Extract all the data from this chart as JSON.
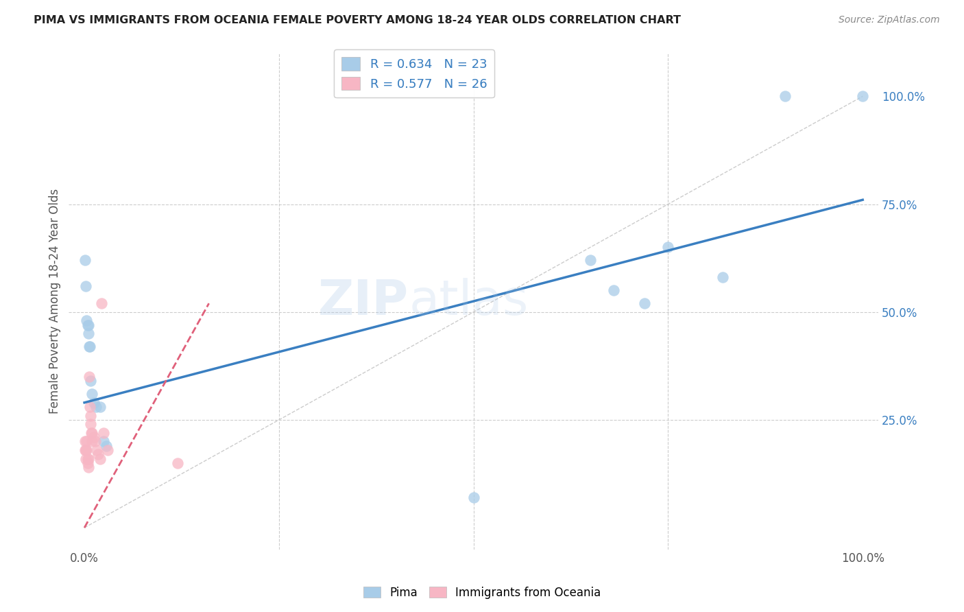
{
  "title": "PIMA VS IMMIGRANTS FROM OCEANIA FEMALE POVERTY AMONG 18-24 YEAR OLDS CORRELATION CHART",
  "source": "Source: ZipAtlas.com",
  "ylabel": "Female Poverty Among 18-24 Year Olds",
  "watermark": "ZIPatlas",
  "pima_color": "#a8cce8",
  "oceania_color": "#f7b6c4",
  "reg_blue": "#3a7fc1",
  "reg_pink": "#e0607a",
  "legend_entries": [
    {
      "label": "R = 0.634   N = 23",
      "color": "#a8cce8"
    },
    {
      "label": "R = 0.577   N = 26",
      "color": "#f7b6c4"
    }
  ],
  "bottom_legend": [
    {
      "label": "Pima",
      "color": "#a8cce8"
    },
    {
      "label": "Immigrants from Oceania",
      "color": "#f7b6c4"
    }
  ],
  "xmin": 0.0,
  "xmax": 1.0,
  "ymin": 0.0,
  "ymax": 1.0,
  "grid_vals": [
    0.25,
    0.5,
    0.75
  ],
  "xtick_labels": [
    "0.0%",
    "100.0%"
  ],
  "xtick_vals": [
    0.0,
    1.0
  ],
  "ytick_right_labels": [
    "25.0%",
    "50.0%",
    "75.0%",
    "100.0%"
  ],
  "ytick_right_vals": [
    0.25,
    0.5,
    0.75,
    1.0
  ],
  "pima_x": [
    0.001,
    0.002,
    0.003,
    0.004,
    0.005,
    0.005,
    0.006,
    0.007,
    0.008,
    0.01,
    0.012,
    0.015,
    0.02,
    0.025,
    0.028,
    0.5,
    0.65,
    0.68,
    0.72,
    0.75,
    0.82,
    0.9,
    1.0
  ],
  "pima_y": [
    0.62,
    0.56,
    0.48,
    0.47,
    0.47,
    0.45,
    0.42,
    0.42,
    0.34,
    0.31,
    0.29,
    0.28,
    0.28,
    0.2,
    0.19,
    0.07,
    0.62,
    0.55,
    0.52,
    0.65,
    0.58,
    1.0,
    1.0
  ],
  "oceania_x": [
    0.001,
    0.001,
    0.002,
    0.002,
    0.003,
    0.003,
    0.004,
    0.004,
    0.005,
    0.005,
    0.006,
    0.007,
    0.008,
    0.008,
    0.009,
    0.01,
    0.01,
    0.012,
    0.014,
    0.016,
    0.018,
    0.02,
    0.022,
    0.025,
    0.03,
    0.12
  ],
  "oceania_y": [
    0.2,
    0.18,
    0.18,
    0.16,
    0.2,
    0.18,
    0.16,
    0.15,
    0.16,
    0.14,
    0.35,
    0.28,
    0.26,
    0.24,
    0.22,
    0.22,
    0.2,
    0.21,
    0.2,
    0.18,
    0.17,
    0.16,
    0.52,
    0.22,
    0.18,
    0.15
  ],
  "blue_line_x0": 0.0,
  "blue_line_x1": 1.0,
  "blue_line_y0": 0.29,
  "blue_line_y1": 0.76,
  "pink_line_x0": 0.0,
  "pink_line_x1": 0.16,
  "pink_line_y0": 0.0,
  "pink_line_y1": 0.52
}
